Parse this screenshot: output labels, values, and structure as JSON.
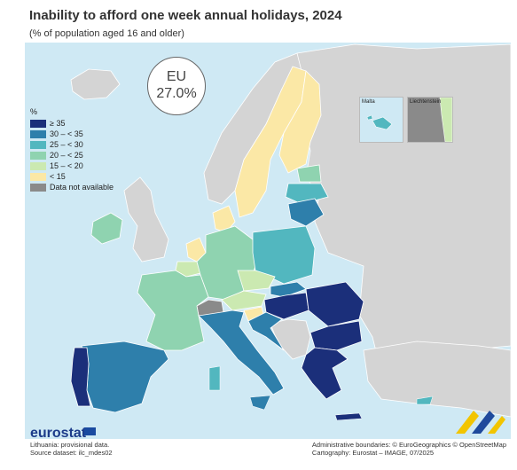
{
  "title": "Inability to afford one week annual holidays, 2024",
  "subtitle": "(% of population aged 16 and older)",
  "eu_badge": {
    "label": "EU",
    "value": "27.0%"
  },
  "legend": {
    "unit": "%",
    "items": [
      {
        "label": "≥ 35",
        "color": "#1b2f7a"
      },
      {
        "label": "30 – < 35",
        "color": "#2e7fab"
      },
      {
        "label": "25 – < 30",
        "color": "#52b7bf"
      },
      {
        "label": "20 – < 25",
        "color": "#8fd3b0"
      },
      {
        "label": "15 – < 20",
        "color": "#cbe9b1"
      },
      {
        "label": "< 15",
        "color": "#fbe8a6"
      },
      {
        "label": "Data not available",
        "color": "#8a8a8a"
      }
    ]
  },
  "insets": {
    "malta": "Malta",
    "liechtenstein": "Liechtenstein"
  },
  "non_eu_color": "#d4d4d4",
  "sea_color": "#cfe9f4",
  "brand": {
    "logo_text": "eurostat"
  },
  "footer": {
    "note": "Lithuania: provisional data.",
    "source": "Source dataset: ilc_mdes02",
    "boundaries": "Administrative boundaries: © EuroGeographics © OpenStreetMap",
    "cartography": "Cartography: Eurostat – IMAGE, 07/2025"
  }
}
